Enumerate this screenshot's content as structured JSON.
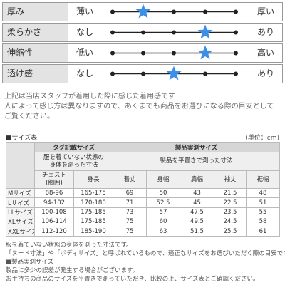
{
  "attributes": [
    {
      "label": "厚み",
      "low": "薄い",
      "high": "厚い",
      "level": 2
    },
    {
      "label": "柔らかさ",
      "low": "なし",
      "high": "あり",
      "level": 4
    },
    {
      "label": "伸縮性",
      "low": "低い",
      "high": "高い",
      "level": 4
    },
    {
      "label": "透け感",
      "low": "なし",
      "high": "あり",
      "level": 3
    }
  ],
  "notes_top": [
    "上記は当店スタッフが着用した際に感じた着用感です",
    "人によって感じ方は異なりますので、あくまでも商品をお選びになる際の目安として",
    "ご覧ください。"
  ],
  "size_table": {
    "title": "■サイズ表",
    "unit": "(単位：cm)",
    "group_headers": [
      "タグ記載サイズ",
      "製品実測サイズ"
    ],
    "group_notes": [
      "服を着ていない状態の身体を測った寸法",
      "製品を平置きで測った寸法"
    ],
    "columns": [
      "チェスト(胸囲)",
      "身長",
      "着丈",
      "身幅",
      "肩幅",
      "袖丈",
      "裾幅"
    ],
    "rows": [
      [
        "Mサイズ",
        "88-96",
        "165-175",
        69,
        50,
        43,
        21.5,
        48
      ],
      [
        "Lサイズ",
        "94-102",
        "170-180",
        71,
        52.5,
        45,
        22.5,
        51
      ],
      [
        "LLサイズ",
        "100-108",
        "175-185",
        73,
        57,
        47.5,
        23.5,
        55
      ],
      [
        "XLサイズ",
        "106-114",
        "175-185",
        75,
        60,
        49.5,
        24.5,
        58
      ],
      [
        "XXLサイズ",
        "112-120",
        "185-190",
        75,
        63,
        51.5,
        25.5,
        61
      ]
    ]
  },
  "notes_bottom": [
    "服を着ていない状態の身体を測った寸法です。",
    "「ヌード寸法」や「ボディサイズ」と呼ばれているもので、適正なサイズをお選びいただく際の目安です。",
    "■製品実測サイズ",
    "製品に多少の誤差が発生する場合がございます。",
    "お手持ちの商品のサイズを平置きで測っていただき、比較の上、サイズ表とご確認ください。"
  ]
}
